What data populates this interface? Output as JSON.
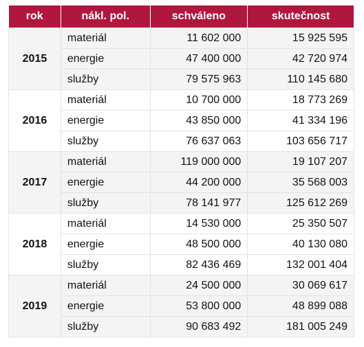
{
  "table": {
    "header": [
      "rok",
      "nákl. pol.",
      "schváleno",
      "skutečnost"
    ],
    "groups": [
      {
        "year": "2015",
        "rows": [
          [
            "materiál",
            "11 602 000",
            "15 925 595"
          ],
          [
            "energie",
            "47 400 000",
            "42 720 974"
          ],
          [
            "služby",
            "79 575 963",
            "110 145 680"
          ]
        ]
      },
      {
        "year": "2016",
        "rows": [
          [
            "materiál",
            "10 700 000",
            "18 773 269"
          ],
          [
            "energie",
            "43 850 000",
            "41 334 196"
          ],
          [
            "služby",
            "76 637 063",
            "103 656 717"
          ]
        ]
      },
      {
        "year": "2017",
        "rows": [
          [
            "materiál",
            "119 000 000",
            "19 107 207"
          ],
          [
            "energie",
            "44 200 000",
            "35 568 003"
          ],
          [
            "služby",
            "78 141 977",
            "125 612 269"
          ]
        ]
      },
      {
        "year": "2018",
        "rows": [
          [
            "materiál",
            "14 530 000",
            "25 350 507"
          ],
          [
            "energie",
            "48 500 000",
            "40 130 080"
          ],
          [
            "služby",
            "82 436 469",
            "132 001 404"
          ]
        ]
      },
      {
        "year": "2019",
        "rows": [
          [
            "materiál",
            "24 500 000",
            "30 069 617"
          ],
          [
            "energie",
            "53 800 000",
            "48 899 088"
          ],
          [
            "služby",
            "90 683 492",
            "181 005 249"
          ]
        ]
      }
    ]
  }
}
